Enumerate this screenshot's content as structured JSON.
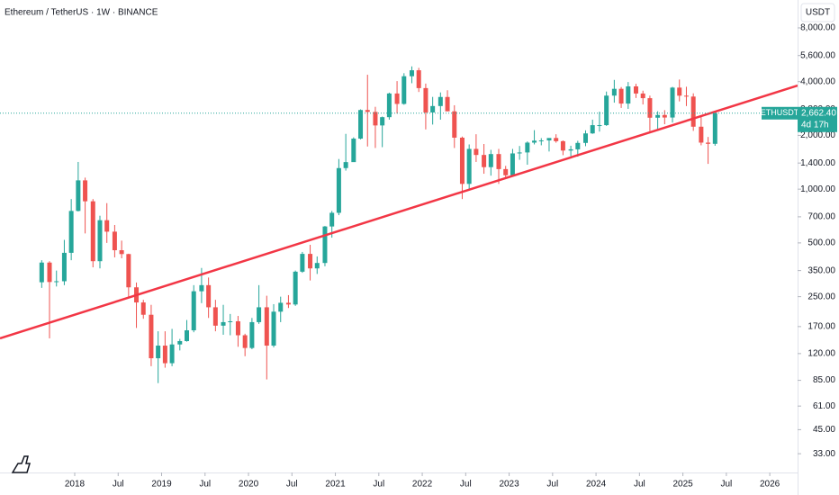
{
  "chart_data": {
    "type": "candlestick",
    "title": "Ethereum / TetherUS · 1W · BINANCE",
    "currency": "USDT",
    "symbol": "ETHUSDT",
    "last_price": {
      "value": 2662.4,
      "label": "2,662.40"
    },
    "countdown": "4d 17h",
    "log_scale": true,
    "grid": false,
    "up_color": "#26a69a",
    "down_color": "#ef5350",
    "xlim": [
      2017.14,
      2026.32
    ],
    "xticks": [
      2018,
      {
        "value": 2018.5,
        "label": "Jul"
      },
      2019,
      {
        "value": 2019.5,
        "label": "Jul"
      },
      2020,
      {
        "value": 2020.5,
        "label": "Jul"
      },
      2021,
      {
        "value": 2021.5,
        "label": "Jul"
      },
      2022,
      {
        "value": 2022.5,
        "label": "Jul"
      },
      2023,
      {
        "value": 2023.5,
        "label": "Jul"
      },
      2024,
      {
        "value": 2024.5,
        "label": "Jul"
      },
      2025,
      {
        "value": 2025.5,
        "label": "Jul"
      },
      2026
    ],
    "ylim": [
      25.9,
      11460
    ],
    "yticks": [
      {
        "value": 8000,
        "label": "8,000.00"
      },
      {
        "value": 5600,
        "label": "5,600.00"
      },
      {
        "value": 4000,
        "label": "4,000.00"
      },
      {
        "value": 2800,
        "label": "2,800.00"
      },
      {
        "value": 2000,
        "label": "2,000.00"
      },
      {
        "value": 1400,
        "label": "1,400.00"
      },
      {
        "value": 1000,
        "label": "1,000.00"
      },
      {
        "value": 700,
        "label": "700.00"
      },
      {
        "value": 500,
        "label": "500.00"
      },
      {
        "value": 350,
        "label": "350.00"
      },
      {
        "value": 250,
        "label": "250.00"
      },
      {
        "value": 170,
        "label": "170.00"
      },
      {
        "value": 120,
        "label": "120.00"
      },
      {
        "value": 85,
        "label": "85.00"
      },
      {
        "value": 61,
        "label": "61.00"
      },
      {
        "value": 45,
        "label": "45.00"
      },
      {
        "value": 33,
        "label": "33.00"
      }
    ],
    "trendline": {
      "color": "#f23645",
      "x": [
        2017.14,
        2026.32
      ],
      "y": [
        146,
        3805
      ]
    },
    "candles": {
      "x": [
        2017.62,
        2017.71,
        2017.79,
        2017.88,
        2017.96,
        2018.04,
        2018.12,
        2018.21,
        2018.29,
        2018.37,
        2018.46,
        2018.54,
        2018.62,
        2018.71,
        2018.79,
        2018.88,
        2018.96,
        2019.04,
        2019.12,
        2019.21,
        2019.29,
        2019.37,
        2019.46,
        2019.54,
        2019.62,
        2019.71,
        2019.79,
        2019.88,
        2019.96,
        2020.04,
        2020.12,
        2020.21,
        2020.29,
        2020.37,
        2020.46,
        2020.54,
        2020.62,
        2020.71,
        2020.79,
        2020.88,
        2020.96,
        2021.04,
        2021.12,
        2021.21,
        2021.29,
        2021.37,
        2021.46,
        2021.54,
        2021.62,
        2021.71,
        2021.79,
        2021.88,
        2021.96,
        2022.04,
        2022.12,
        2022.21,
        2022.29,
        2022.37,
        2022.46,
        2022.54,
        2022.62,
        2022.71,
        2022.79,
        2022.88,
        2022.96,
        2023.04,
        2023.12,
        2023.21,
        2023.29,
        2023.37,
        2023.46,
        2023.54,
        2023.62,
        2023.71,
        2023.79,
        2023.88,
        2023.96,
        2024.04,
        2024.12,
        2024.21,
        2024.29,
        2024.37,
        2024.46,
        2024.54,
        2024.62,
        2024.71,
        2024.79,
        2024.88,
        2024.96,
        2025.04,
        2025.12,
        2025.21,
        2025.29,
        2025.37
      ],
      "open": [
        301,
        388,
        302,
        305,
        440,
        755,
        1120,
        855,
        395,
        670,
        578,
        455,
        433,
        282,
        232,
        198,
        113,
        133,
        106,
        135,
        141,
        162,
        268,
        290,
        218,
        172,
        180,
        182,
        152,
        129,
        180,
        218,
        133,
        206,
        231,
        226,
        345,
        434,
        360,
        386,
        618,
        737,
        1312,
        1417,
        1918,
        2774,
        2707,
        2274,
        2530,
        3433,
        3001,
        4288,
        4631,
        3680,
        2688,
        2920,
        3282,
        2727,
        1942,
        1070,
        1680,
        1554,
        1328,
        1572,
        1295,
        1196,
        1585,
        1605,
        1822,
        1869,
        1874,
        1934,
        1856,
        1645,
        1671,
        1815,
        2052,
        2282,
        2283,
        3340,
        3646,
        3014,
        3762,
        3432,
        3232,
        2512,
        2602,
        2518,
        3703,
        3337,
        3300,
        2237,
        1822,
        1794
      ],
      "high": [
        400,
        395,
        350,
        520,
        880,
        1420,
        1160,
        880,
        710,
        835,
        630,
        515,
        435,
        300,
        240,
        225,
        160,
        160,
        165,
        145,
        185,
        290,
        362,
        320,
        240,
        225,
        200,
        195,
        155,
        190,
        290,
        253,
        227,
        250,
        255,
        350,
        445,
        488,
        420,
        622,
        755,
        1475,
        2040,
        1950,
        2797,
        4372,
        2891,
        2550,
        3470,
        4027,
        4460,
        4868,
        4778,
        3900,
        3285,
        3480,
        3580,
        2950,
        1970,
        1780,
        2030,
        1790,
        1660,
        1680,
        1350,
        1680,
        1745,
        1850,
        2140,
        1930,
        1930,
        2030,
        1875,
        1750,
        1865,
        2135,
        2450,
        2715,
        3520,
        4090,
        3730,
        3980,
        3890,
        3560,
        3340,
        2730,
        2770,
        3740,
        4110,
        3745,
        3440,
        2550,
        1960,
        2740
      ],
      "low": [
        280,
        146,
        285,
        290,
        400,
        750,
        565,
        365,
        360,
        500,
        415,
        410,
        250,
        167,
        188,
        102,
        82,
        100,
        102,
        125,
        140,
        158,
        230,
        190,
        160,
        153,
        152,
        131,
        116,
        127,
        176,
        86,
        130,
        180,
        216,
        222,
        340,
        308,
        335,
        370,
        535,
        715,
        1270,
        1440,
        1900,
        1733,
        1700,
        1718,
        2450,
        2650,
        2970,
        3920,
        3500,
        2160,
        2300,
        2450,
        2780,
        1700,
        880,
        1000,
        1420,
        1220,
        1190,
        1070,
        1160,
        1190,
        1460,
        1370,
        1780,
        1760,
        1625,
        1820,
        1550,
        1530,
        1520,
        1740,
        2040,
        2100,
        2260,
        3050,
        2850,
        2815,
        3240,
        2980,
        2110,
        2150,
        2310,
        2360,
        3100,
        2920,
        2120,
        1760,
        1385,
        1750
      ],
      "close": [
        388,
        302,
        305,
        440,
        755,
        1120,
        855,
        395,
        670,
        578,
        455,
        433,
        282,
        232,
        198,
        113,
        133,
        106,
        135,
        141,
        162,
        268,
        290,
        218,
        172,
        180,
        182,
        152,
        129,
        180,
        218,
        133,
        206,
        231,
        226,
        345,
        434,
        360,
        386,
        618,
        737,
        1312,
        1417,
        1918,
        2774,
        2707,
        2274,
        2530,
        3433,
        3001,
        4288,
        4631,
        3680,
        2688,
        2920,
        3282,
        2727,
        1942,
        1070,
        1680,
        1554,
        1328,
        1572,
        1295,
        1196,
        1585,
        1605,
        1822,
        1869,
        1874,
        1934,
        1856,
        1645,
        1671,
        1815,
        2052,
        2282,
        2283,
        3340,
        3646,
        3014,
        3762,
        3432,
        3232,
        2512,
        2602,
        2518,
        3703,
        3337,
        3300,
        2237,
        1822,
        1794,
        2662.4
      ]
    }
  }
}
